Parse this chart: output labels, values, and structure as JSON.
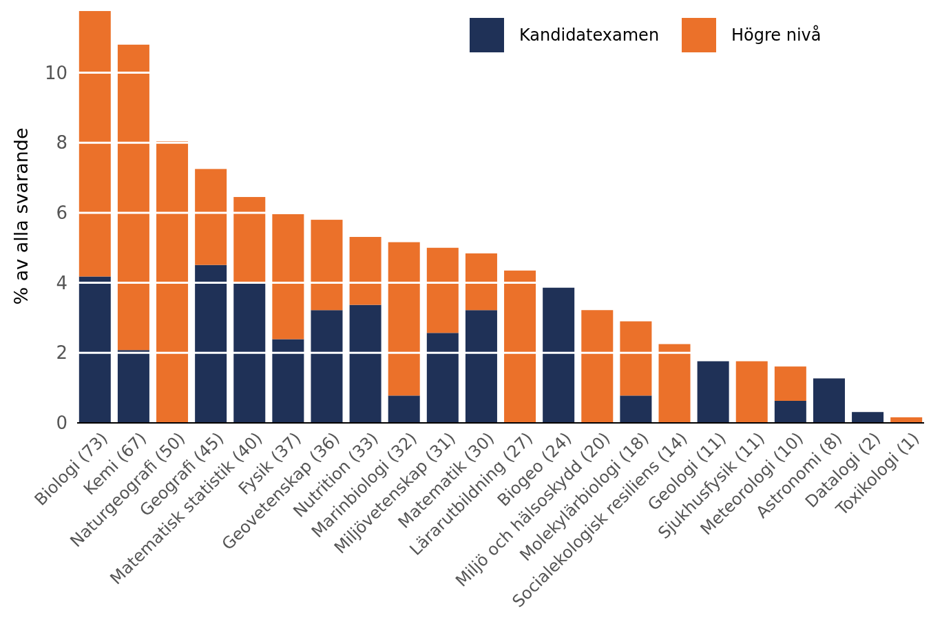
{
  "chart_data": {
    "type": "bar",
    "stacked": true,
    "ylabel": "% av alla svarande",
    "categories": [
      "Biologi (73)",
      "Kemi (67)",
      "Naturgeografi (50)",
      "Geografi (45)",
      "Matematisk statistik (40)",
      "Fysik (37)",
      "Geovetenskap (36)",
      "Nutrition (33)",
      "Marinbiologi (32)",
      "Miljövetenskap (31)",
      "Matematik (30)",
      "Lärarutbildning (27)",
      "Biogeo (24)",
      "Miljö och hälsoskydd (20)",
      "Molekylärbiologi (18)",
      "Socialekologisk resiliens (14)",
      "Geologi (11)",
      "Sjukhusfysik (11)",
      "Meteorologi (10)",
      "Astronomi (8)",
      "Datalogi (2)",
      "Toxikologi (1)"
    ],
    "series": [
      {
        "name": "Kandidatexamen",
        "color": "#1f3157",
        "values": [
          4.18,
          2.08,
          0,
          4.51,
          3.98,
          2.39,
          3.22,
          3.37,
          0.78,
          2.57,
          3.22,
          0,
          3.86,
          0,
          0.78,
          0,
          1.76,
          0,
          0.63,
          1.27,
          0.31,
          0
        ]
      },
      {
        "name": "Högre nivå",
        "color": "#eb712a",
        "values": [
          7.58,
          8.72,
          8.04,
          2.74,
          2.47,
          3.57,
          2.58,
          1.94,
          4.38,
          2.43,
          1.62,
          4.35,
          0,
          3.22,
          2.12,
          2.25,
          0,
          1.76,
          0.98,
          0,
          0,
          0.16
        ]
      }
    ],
    "ylim": [
      0,
      11.8
    ],
    "yticks": [
      0,
      2,
      4,
      6,
      8,
      10
    ],
    "grid": "y",
    "legend": "top right"
  }
}
